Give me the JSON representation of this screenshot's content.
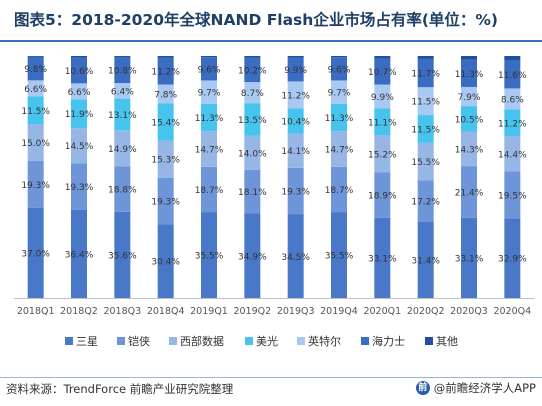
{
  "title": "图表5：2018-2020年全球NAND Flash企业市场占有率(单位：%)",
  "source": "资料来源：TrendForce 前瞻产业研究院整理",
  "brand": "@前瞻经济学人APP",
  "colors": {
    "三星": "#4a78c8",
    "铠侠": "#6d95d8",
    "西部数据": "#96b6e6",
    "美光": "#46c4ee",
    "英特尔": "#a9c9f3",
    "海力士": "#3a6cc2",
    "其他": "#1f4f9e"
  },
  "chart_data": {
    "type": "bar",
    "stacked": true,
    "percent": true,
    "title": "图表5：2018-2020年全球NAND Flash企业市场占有率(单位：%)",
    "categories": [
      "2018Q1",
      "2018Q2",
      "2018Q3",
      "2018Q4",
      "2019Q1",
      "2019Q2",
      "2019Q3",
      "2019Q4",
      "2020Q1",
      "2020Q2",
      "2020Q3",
      "2020Q4"
    ],
    "legend_position": "bottom",
    "grid": false,
    "series": [
      {
        "name": "三星",
        "values": [
          37.0,
          36.4,
          35.6,
          30.4,
          35.5,
          34.9,
          34.5,
          35.5,
          33.1,
          31.4,
          33.1,
          32.9
        ]
      },
      {
        "name": "铠侠",
        "values": [
          19.3,
          19.3,
          18.8,
          19.3,
          18.7,
          18.1,
          19.3,
          18.7,
          18.9,
          17.2,
          21.4,
          19.5
        ]
      },
      {
        "name": "西部数据",
        "values": [
          15.0,
          14.5,
          14.9,
          15.3,
          14.7,
          14.0,
          14.1,
          14.7,
          15.2,
          15.5,
          14.3,
          14.4
        ]
      },
      {
        "name": "美光",
        "values": [
          11.5,
          11.9,
          13.1,
          15.4,
          11.3,
          13.5,
          10.4,
          11.3,
          11.1,
          11.5,
          10.5,
          11.2
        ]
      },
      {
        "name": "英特尔",
        "values": [
          6.6,
          6.6,
          6.4,
          7.8,
          9.7,
          8.7,
          11.2,
          9.7,
          9.9,
          11.5,
          7.9,
          8.6
        ]
      },
      {
        "name": "海力士",
        "values": [
          9.8,
          10.6,
          10.8,
          11.2,
          9.6,
          10.2,
          9.9,
          9.6,
          10.7,
          11.7,
          11.3,
          11.6
        ]
      },
      {
        "name": "其他",
        "values": [
          0.2,
          0.7,
          0.4,
          0.6,
          0.5,
          0.6,
          0.6,
          0.5,
          1.1,
          1.2,
          1.5,
          1.8
        ]
      }
    ]
  }
}
